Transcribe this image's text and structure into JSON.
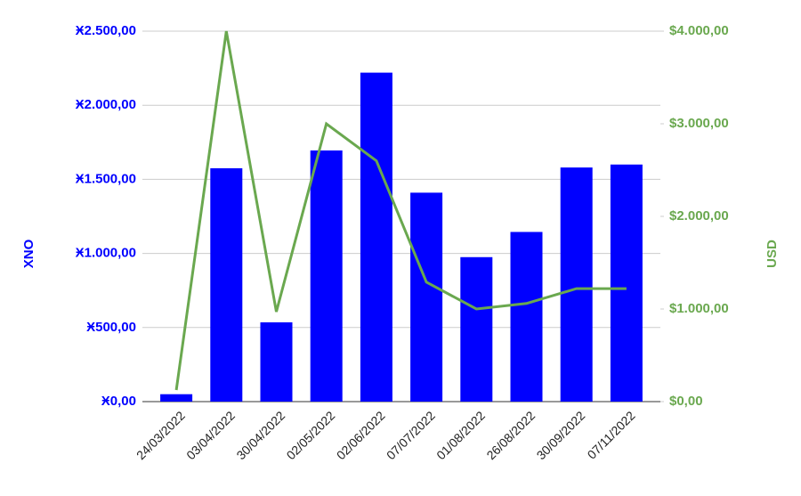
{
  "chart_data": {
    "type": "bar-line",
    "categories": [
      "24/03/2022",
      "03/04/2022",
      "30/04/2022",
      "02/05/2022",
      "02/06/2022",
      "07/07/2022",
      "01/08/2022",
      "26/08/2022",
      "30/09/2022",
      "07/11/2022"
    ],
    "series": [
      {
        "name": "XNO",
        "color": "#0000ff",
        "type": "bar",
        "axis": "y",
        "values": [
          50,
          1575,
          535,
          1695,
          2220,
          1410,
          975,
          1145,
          1580,
          1600
        ]
      },
      {
        "name": "USD",
        "color": "#6aa84f",
        "type": "line",
        "axis": "y2",
        "values": [
          125,
          4000,
          970,
          3000,
          2600,
          1290,
          1000,
          1060,
          1220,
          1220
        ]
      }
    ],
    "y_label": "XNO",
    "y2_label": "USD",
    "ylim": [
      0,
      2500
    ],
    "yticks": [
      {
        "value": 0,
        "label": "Ӿ0,00"
      },
      {
        "value": 500,
        "label": "Ӿ500,00"
      },
      {
        "value": 1000,
        "label": "Ӿ1.000,00"
      },
      {
        "value": 1500,
        "label": "Ӿ1.500,00"
      },
      {
        "value": 2000,
        "label": "Ӿ2.000,00"
      },
      {
        "value": 2500,
        "label": "Ӿ2.500,00"
      }
    ],
    "y2lim": [
      0,
      4000
    ],
    "y2ticks": [
      {
        "value": 0,
        "label": "$0,00"
      },
      {
        "value": 1000,
        "label": "$1.000,00"
      },
      {
        "value": 2000,
        "label": "$2.000,00"
      },
      {
        "value": 3000,
        "label": "$3.000,00"
      },
      {
        "value": 4000,
        "label": "$4.000,00"
      }
    ],
    "grid": true
  }
}
